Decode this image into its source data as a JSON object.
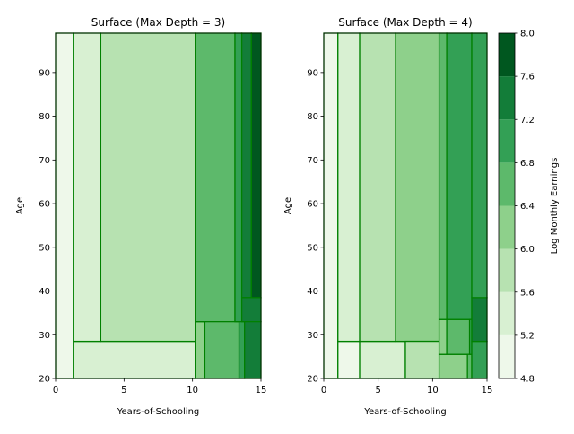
{
  "chart_data": {
    "type": "heatmap",
    "colorbar": {
      "label": "Log Monthly Earnings",
      "levels": [
        4.8,
        5.2,
        5.6,
        6.0,
        6.4,
        6.8,
        7.2,
        7.6,
        8.0
      ],
      "colors": [
        "#eef8ea",
        "#d8f0d2",
        "#b7e2b1",
        "#8ed08b",
        "#5db96b",
        "#33a055",
        "#137d39",
        "#00571f"
      ],
      "tick_labels": [
        "4.8",
        "5.2",
        "5.6",
        "6.0",
        "6.4",
        "6.8",
        "7.2",
        "7.6",
        "8.0"
      ]
    },
    "contour_line_color": "#008000",
    "panels": [
      {
        "title": "Surface (Max Depth = 3)",
        "xlabel": "Years-of-Schooling",
        "ylabel": "Age",
        "xlim": [
          0,
          15
        ],
        "ylim": [
          20,
          99
        ],
        "xticks": [
          0,
          5,
          10,
          15
        ],
        "xtick_labels": [
          "0",
          "5",
          "10",
          "15"
        ],
        "yticks": [
          20,
          30,
          40,
          50,
          60,
          70,
          80,
          90
        ],
        "ytick_labels": [
          "20",
          "30",
          "40",
          "50",
          "60",
          "70",
          "80",
          "90"
        ],
        "regions": [
          {
            "x": [
              0,
              1.3
            ],
            "y": [
              20,
              99
            ],
            "level": 0
          },
          {
            "x": [
              1.3,
              10.2
            ],
            "y": [
              20,
              28.5
            ],
            "level": 1
          },
          {
            "x": [
              1.3,
              3.3
            ],
            "y": [
              28.5,
              99
            ],
            "level": 1
          },
          {
            "x": [
              3.3,
              10.2
            ],
            "y": [
              28.5,
              99
            ],
            "level": 2
          },
          {
            "x": [
              10.2,
              10.9
            ],
            "y": [
              20,
              33
            ],
            "level": 3
          },
          {
            "x": [
              10.2,
              13.1
            ],
            "y": [
              33,
              99
            ],
            "level": 4
          },
          {
            "x": [
              10.9,
              13.4
            ],
            "y": [
              20,
              33
            ],
            "level": 4
          },
          {
            "x": [
              13.1,
              13.6
            ],
            "y": [
              33,
              99
            ],
            "level": 5
          },
          {
            "x": [
              13.4,
              13.8
            ],
            "y": [
              20,
              33
            ],
            "level": 5
          },
          {
            "x": [
              13.6,
              14.3
            ],
            "y": [
              38.5,
              99
            ],
            "level": 6
          },
          {
            "x": [
              13.6,
              15
            ],
            "y": [
              33,
              38.5
            ],
            "level": 6
          },
          {
            "x": [
              13.8,
              15
            ],
            "y": [
              20,
              33
            ],
            "level": 6
          },
          {
            "x": [
              14.3,
              15
            ],
            "y": [
              38.5,
              99
            ],
            "level": 7
          }
        ]
      },
      {
        "title": "Surface (Max Depth = 4)",
        "xlabel": "Years-of-Schooling",
        "ylabel": "Age",
        "xlim": [
          0,
          15
        ],
        "ylim": [
          20,
          99
        ],
        "xticks": [
          0,
          5,
          10,
          15
        ],
        "xtick_labels": [
          "0",
          "5",
          "10",
          "15"
        ],
        "yticks": [
          20,
          30,
          40,
          50,
          60,
          70,
          80,
          90
        ],
        "ytick_labels": [
          "20",
          "30",
          "40",
          "50",
          "60",
          "70",
          "80",
          "90"
        ],
        "regions": [
          {
            "x": [
              0,
              1.3
            ],
            "y": [
              20,
              99
            ],
            "level": 0
          },
          {
            "x": [
              1.3,
              3.3
            ],
            "y": [
              20,
              28.5
            ],
            "level": 0
          },
          {
            "x": [
              1.3,
              3.3
            ],
            "y": [
              28.5,
              99
            ],
            "level": 1
          },
          {
            "x": [
              3.3,
              7.5
            ],
            "y": [
              20,
              28.5
            ],
            "level": 1
          },
          {
            "x": [
              3.3,
              6.6
            ],
            "y": [
              28.5,
              99
            ],
            "level": 2
          },
          {
            "x": [
              6.6,
              10.6
            ],
            "y": [
              28.5,
              99
            ],
            "level": 3
          },
          {
            "x": [
              7.5,
              10.6
            ],
            "y": [
              20,
              28.5
            ],
            "level": 2
          },
          {
            "x": [
              10.6,
              13.2
            ],
            "y": [
              20,
              25.5
            ],
            "level": 3
          },
          {
            "x": [
              10.6,
              11.3
            ],
            "y": [
              25.5,
              33.5
            ],
            "level": 3
          },
          {
            "x": [
              11.3,
              13.4
            ],
            "y": [
              25.5,
              33.5
            ],
            "level": 4
          },
          {
            "x": [
              10.6,
              11.3
            ],
            "y": [
              33.5,
              99
            ],
            "level": 4
          },
          {
            "x": [
              11.3,
              13.6
            ],
            "y": [
              33.5,
              99
            ],
            "level": 5
          },
          {
            "x": [
              13.2,
              13.6
            ],
            "y": [
              20,
              25.5
            ],
            "level": 4
          },
          {
            "x": [
              13.4,
              13.6
            ],
            "y": [
              25.5,
              33.5
            ],
            "level": 5
          },
          {
            "x": [
              13.6,
              15
            ],
            "y": [
              20,
              28.5
            ],
            "level": 5
          },
          {
            "x": [
              13.6,
              15
            ],
            "y": [
              28.5,
              38.5
            ],
            "level": 6
          },
          {
            "x": [
              13.6,
              15
            ],
            "y": [
              38.5,
              99
            ],
            "level": 5
          }
        ]
      }
    ]
  }
}
